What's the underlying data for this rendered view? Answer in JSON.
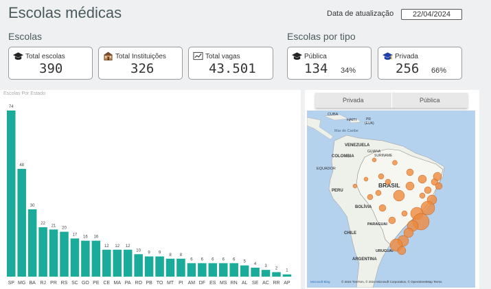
{
  "header": {
    "title": "Escolas médicas",
    "update_label": "Data de atualização",
    "update_value": "22/04/2024"
  },
  "sections": {
    "escolas": "Escolas",
    "por_tipo": "Escolas por tipo"
  },
  "cards": {
    "total_escolas": {
      "label": "Total escolas",
      "value": "390",
      "icon": "graduation-cap-icon"
    },
    "total_instituicoes": {
      "label": "Total Instituições",
      "value": "326",
      "icon": "school-building-icon"
    },
    "total_vagas": {
      "label": "Total vagas",
      "value": "43.501",
      "icon": "chart-icon"
    },
    "publica": {
      "label": "Pública",
      "value": "134",
      "pct": "34%",
      "icon": "graduation-cap-icon"
    },
    "privada": {
      "label": "Privada",
      "value": "256",
      "pct": "66%",
      "icon": "graduation-cap-colored-icon"
    }
  },
  "chart_data": {
    "type": "bar",
    "title": "Escolas Por Estado",
    "categories": [
      "SP",
      "MG",
      "BA",
      "RJ",
      "PR",
      "RS",
      "SC",
      "GO",
      "PE",
      "CE",
      "MA",
      "PA",
      "RO",
      "PB",
      "TO",
      "MT",
      "PI",
      "AM",
      "DF",
      "ES",
      "MS",
      "RN",
      "AL",
      "SE",
      "AC",
      "RR",
      "AP"
    ],
    "values": [
      74,
      48,
      30,
      22,
      21,
      20,
      17,
      16,
      16,
      12,
      12,
      12,
      10,
      9,
      9,
      8,
      8,
      6,
      6,
      6,
      6,
      6,
      5,
      4,
      3,
      2,
      1
    ],
    "ylim": [
      0,
      74
    ],
    "color": "#1aab9b"
  },
  "map": {
    "tabs": [
      "Privada",
      "Pública"
    ],
    "labels": {
      "cuba": "CUBA",
      "haiti": "HAITI",
      "pr": "PR",
      "eua": "(EUA)",
      "caribe": "Mar do Caribe",
      "venezuela": "VENEZUELA",
      "colombia": "COLOMBIA",
      "guiana": "GUIANA",
      "suriname": "SURINAME",
      "equador": "EQUADOR",
      "brasil": "BRASIL",
      "peru": "PERU",
      "bolivia": "BOLÍVIA",
      "paraguai": "PARAGUAI",
      "chile": "CHILE",
      "uruguai": "URUGUAI",
      "argentina": "ARGENTINA"
    },
    "attribution": "© 2024 TomTom, © 2024 Microsoft Corporation, © OpenStreetMap  Terms",
    "bing": "Microsoft Bing",
    "colors": {
      "sea": "#b4d1ee",
      "land": "#eef0ea",
      "brazil": "#f7f7f2",
      "bubble": "#ee8a3c"
    }
  }
}
